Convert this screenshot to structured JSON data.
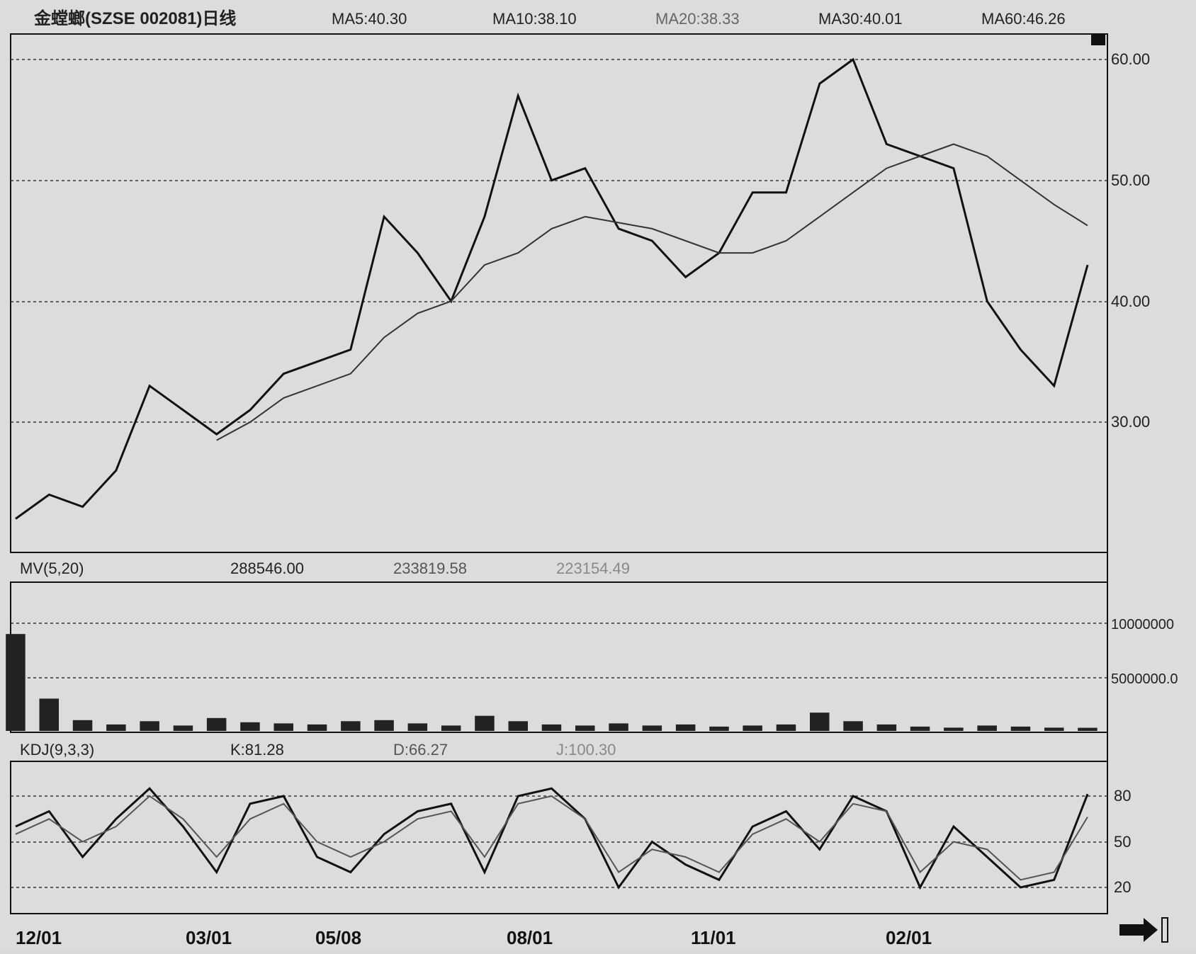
{
  "header": {
    "title": "金螳螂(SZSE 002081)日线",
    "ma5": "MA5:40.30",
    "ma10": "MA10:38.10",
    "ma20": "MA20:38.33",
    "ma30": "MA30:40.01",
    "ma60": "MA60:46.26"
  },
  "volume_header": {
    "label": "MV(5,20)",
    "v1": "288546.00",
    "v2": "233819.58",
    "v3": "223154.49"
  },
  "kdj_header": {
    "label": "KDJ(9,3,3)",
    "k": "K:81.28",
    "d": "D:66.27",
    "j": "J:100.30"
  },
  "price_axis": [
    "60.00",
    "50.00",
    "40.00",
    "30.00"
  ],
  "volume_axis": [
    "10000000",
    "5000000.0"
  ],
  "kdj_axis": [
    "80",
    "50",
    "20"
  ],
  "date_labels": [
    "12/01",
    "03/01",
    "05/08",
    "08/01",
    "11/01",
    "02/01"
  ],
  "colors": {
    "background": "#dcdcdc",
    "line": "#111111",
    "ma_line": "#333333"
  },
  "chart_data": [
    {
      "type": "line",
      "title": "金螳螂(SZSE 002081)日线",
      "x": [
        "12/01",
        "",
        "",
        "",
        "",
        "",
        "03/01",
        "",
        "",
        "05/08",
        "",
        "",
        "",
        "",
        "08/01",
        "",
        "",
        "",
        "",
        "",
        "11/01",
        "",
        "",
        "",
        "",
        "",
        "02/01",
        "",
        "",
        "",
        "",
        "",
        ""
      ],
      "series": [
        {
          "values": [
            22,
            24,
            23,
            26,
            33,
            31,
            29,
            31,
            34,
            35,
            36,
            47,
            44,
            40,
            47,
            57,
            50,
            51,
            46,
            45,
            42,
            44,
            49,
            49,
            58,
            60,
            53,
            52,
            51,
            40,
            36,
            33,
            43
          ]
        },
        {
          "name": "MA60",
          "values": [
            null,
            null,
            null,
            null,
            null,
            null,
            28.5,
            30,
            32,
            33,
            34,
            37,
            39,
            40,
            43,
            44,
            46,
            47,
            46.5,
            46,
            45,
            44,
            44,
            45,
            47,
            49,
            51,
            52,
            53,
            52,
            50,
            48,
            46.26
          ]
        }
      ],
      "ylim": [
        20,
        62
      ]
    },
    {
      "type": "bar",
      "title": "MV(5,20)",
      "values": [
        9000000,
        3000000,
        1000000,
        600000,
        900000,
        500000,
        1200000,
        800000,
        700000,
        600000,
        900000,
        1000000,
        700000,
        500000,
        1400000,
        900000,
        600000,
        500000,
        700000,
        500000,
        600000,
        400000,
        500000,
        600000,
        1700000,
        900000,
        600000,
        400000,
        300000,
        500000,
        400000,
        300000,
        288546
      ],
      "ylim": [
        0,
        12000000
      ]
    },
    {
      "type": "line",
      "title": "KDJ(9,3,3)",
      "series": [
        {
          "name": "K",
          "values": [
            60,
            70,
            40,
            65,
            85,
            60,
            30,
            75,
            80,
            40,
            30,
            55,
            70,
            75,
            30,
            80,
            85,
            65,
            20,
            50,
            35,
            25,
            60,
            70,
            45,
            80,
            70,
            20,
            60,
            40,
            20,
            25,
            81.28
          ]
        },
        {
          "name": "D",
          "values": [
            55,
            65,
            50,
            60,
            80,
            65,
            40,
            65,
            75,
            50,
            40,
            50,
            65,
            70,
            40,
            75,
            80,
            65,
            30,
            45,
            40,
            30,
            55,
            65,
            50,
            75,
            70,
            30,
            50,
            45,
            25,
            30,
            66.27
          ]
        }
      ],
      "ylim": [
        0,
        100
      ]
    }
  ]
}
